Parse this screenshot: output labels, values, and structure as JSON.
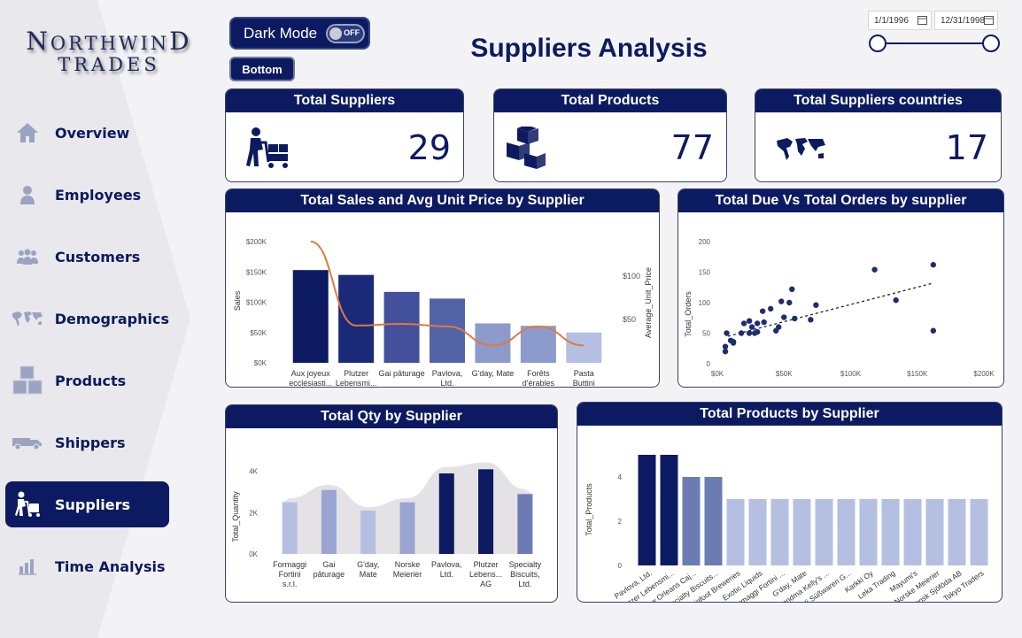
{
  "logo": {
    "line1": "Northwind",
    "line2": "Trades"
  },
  "nav": [
    {
      "label": "Overview",
      "icon": "home-icon"
    },
    {
      "label": "Employees",
      "icon": "person-icon"
    },
    {
      "label": "Customers",
      "icon": "group-icon"
    },
    {
      "label": "Demographics",
      "icon": "world-map-icon"
    },
    {
      "label": "Products",
      "icon": "boxes-icon"
    },
    {
      "label": "Shippers",
      "icon": "truck-icon"
    },
    {
      "label": "Suppliers",
      "icon": "supplier-icon",
      "active": true
    },
    {
      "label": "Time Analysis",
      "icon": "time-chart-icon"
    }
  ],
  "controls": {
    "dark_mode_label": "Dark Mode",
    "toggle_state": "OFF",
    "bottom_button": "Bottom",
    "date_start": "1/1/1996",
    "date_end": "12/31/1998"
  },
  "page_title": "Suppliers Analysis",
  "kpis": [
    {
      "title": "Total Suppliers",
      "value": "29",
      "icon": "supplier-cart-icon"
    },
    {
      "title": "Total Products",
      "value": "77",
      "icon": "boxes-icon"
    },
    {
      "title": "Total Suppliers countries",
      "value": "17",
      "icon": "world-map-icon"
    }
  ],
  "colors": {
    "navy": "#0c1b61",
    "mid": "#6c7bb3",
    "light": "#b5bfe2",
    "line": "#e07a3e",
    "band": "#e4e2e4"
  },
  "chart_data": [
    {
      "type": "bar",
      "title": "Total Sales and Avg Unit Price by Supplier",
      "ylabel": "Sales",
      "y2label": "Average_Unit_Price",
      "categories": [
        "Aux joyeux ecclésiasti...",
        "Plutzer Lebensmi... AG",
        "Gai pâturage",
        "Pavlova, Ltd.",
        "G'day, Mate",
        "Forêts d'érables",
        "Pasta Buttini s.r.l."
      ],
      "series": [
        {
          "values": [
            153000,
            145000,
            117000,
            106000,
            65000,
            61000,
            50000
          ]
        },
        {
          "values": [
            140,
            43,
            45,
            42,
            20,
            42,
            20
          ]
        }
      ],
      "yticks": [
        "$0K",
        "$50K",
        "$100K",
        "$150K",
        "$200K"
      ],
      "y2ticks": [
        "$50",
        "$100"
      ],
      "ylim": [
        0,
        200000
      ],
      "y2lim": [
        0,
        140
      ]
    },
    {
      "type": "scatter",
      "title": "Total Due Vs Total Orders by supplier",
      "ylabel": "Total_Orders",
      "xticks": [
        "$0K",
        "$50K",
        "$100K",
        "$150K",
        "$200K"
      ],
      "yticks": [
        "0",
        "50",
        "100",
        "150",
        "200"
      ],
      "xlim": [
        0,
        200000
      ],
      "ylim": [
        0,
        200
      ],
      "points": [
        [
          6000,
          20
        ],
        [
          6000,
          28
        ],
        [
          7000,
          50
        ],
        [
          10000,
          38
        ],
        [
          12000,
          34
        ],
        [
          12000,
          36
        ],
        [
          18000,
          50
        ],
        [
          20000,
          66
        ],
        [
          24000,
          50
        ],
        [
          24000,
          70
        ],
        [
          26000,
          60
        ],
        [
          28000,
          50
        ],
        [
          30000,
          52
        ],
        [
          30000,
          66
        ],
        [
          34000,
          86
        ],
        [
          35000,
          68
        ],
        [
          40000,
          90
        ],
        [
          44000,
          54
        ],
        [
          46000,
          60
        ],
        [
          48000,
          102
        ],
        [
          50000,
          76
        ],
        [
          54000,
          100
        ],
        [
          56000,
          122
        ],
        [
          58000,
          74
        ],
        [
          70000,
          72
        ],
        [
          74000,
          96
        ],
        [
          118000,
          154
        ],
        [
          134000,
          104
        ],
        [
          162000,
          162
        ],
        [
          162000,
          54
        ]
      ],
      "trendline": [
        [
          8000,
          45
        ],
        [
          162000,
          132
        ]
      ]
    },
    {
      "type": "bar",
      "title": "Total Qty by Supplier",
      "ylabel": "Total_Quantity",
      "categories": [
        "Formaggi Fortini s.r.l.",
        "Gai pâturage",
        "G'day, Mate",
        "Norske Meierier",
        "Pavlova, Ltd.",
        "Plutzer Lebens... AG",
        "Specialty Biscuits, Ltd."
      ],
      "values": [
        2500,
        3100,
        2100,
        2500,
        3900,
        4100,
        2900
      ],
      "yticks": [
        "0K",
        "2K",
        "4K"
      ],
      "ylim": [
        0,
        4800
      ]
    },
    {
      "type": "bar",
      "title": "Total Products by Supplier",
      "ylabel": "Total_Products",
      "categories": [
        "Pavlova, Ltd.",
        "Plutzer Lebensmi...",
        "New Orleans Caj...",
        "Specialty Biscuits...",
        "Bigfoot Breweries",
        "Exotic Liquids",
        "Formaggi Fortini ...",
        "G'day, Mate",
        "Grandma Kelly's ...",
        "Heli Süßwaren G...",
        "Karkki Oy",
        "Leka Trading",
        "Mayumi's",
        "Norske Meierier",
        "Svensk Sjöföda AB",
        "Tokyo Traders"
      ],
      "values": [
        5,
        5,
        4,
        4,
        3,
        3,
        3,
        3,
        3,
        3,
        3,
        3,
        3,
        3,
        3,
        3
      ],
      "yticks": [
        "0",
        "2",
        "4"
      ],
      "ylim": [
        0,
        5
      ]
    }
  ]
}
